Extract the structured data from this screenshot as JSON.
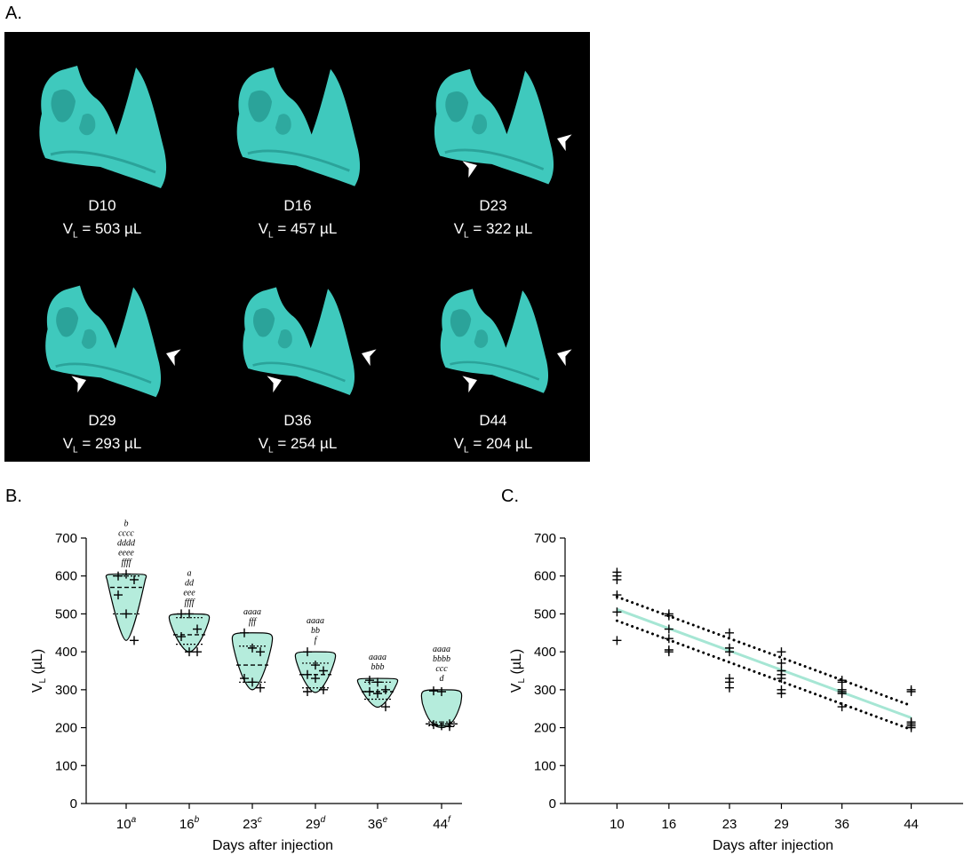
{
  "panel_a": {
    "label": "A.",
    "volume_prefix": "V",
    "volume_sub": "L",
    "items": [
      {
        "day": "D10",
        "volume": "503 µL",
        "arrows": 0
      },
      {
        "day": "D16",
        "volume": "457 µL",
        "arrows": 0
      },
      {
        "day": "D23",
        "volume": "322 µL",
        "arrows": 2
      },
      {
        "day": "D29",
        "volume": "293 µL",
        "arrows": 2
      },
      {
        "day": "D36",
        "volume": "254 µL",
        "arrows": 2
      },
      {
        "day": "D44",
        "volume": "204 µL",
        "arrows": 2
      }
    ],
    "colors": {
      "background": "#000000",
      "tissue": "#3fc9bd",
      "tissue_dark": "#1e8a82",
      "arrow": "#ffffff"
    }
  },
  "chart_data": [
    {
      "panel": "B.",
      "type": "violin",
      "xlabel": "Days after injection",
      "ylabel_main": "V",
      "ylabel_sub": "L",
      "ylabel_unit": " (µL)",
      "ylim": [
        0,
        700
      ],
      "yticks": [
        0,
        100,
        200,
        300,
        400,
        500,
        600,
        700
      ],
      "fill_color": "#b5ecdc",
      "groups": [
        {
          "label": "10",
          "sup": "a",
          "annotation": [
            "b",
            "cccc",
            "dddd",
            "eeee",
            "ffff"
          ],
          "min": 430,
          "max": 605,
          "median": 570,
          "q1": 500,
          "q3": 600,
          "points": [
            600,
            605,
            590,
            550,
            500,
            430
          ]
        },
        {
          "label": "16",
          "sup": "b",
          "annotation": [
            "a",
            "dd",
            "eee",
            "ffff"
          ],
          "min": 400,
          "max": 500,
          "median": 445,
          "q1": 420,
          "q3": 490,
          "points": [
            500,
            500,
            460,
            440,
            400,
            400
          ]
        },
        {
          "label": "23",
          "sup": "c",
          "annotation": [
            "aaaa",
            "fff"
          ],
          "min": 300,
          "max": 450,
          "median": 365,
          "q1": 320,
          "q3": 415,
          "points": [
            450,
            410,
            400,
            330,
            320,
            305
          ]
        },
        {
          "label": "29",
          "sup": "d",
          "annotation": [
            "aaaa",
            "bb",
            "f"
          ],
          "min": 293,
          "max": 400,
          "median": 340,
          "q1": 305,
          "q3": 370,
          "points": [
            400,
            365,
            350,
            340,
            330,
            300,
            295
          ]
        },
        {
          "label": "36",
          "sup": "e",
          "annotation": [
            "aaaa",
            "bbb"
          ],
          "min": 254,
          "max": 330,
          "median": 295,
          "q1": 275,
          "q3": 320,
          "points": [
            325,
            320,
            300,
            295,
            290,
            255
          ]
        },
        {
          "label": "44",
          "sup": "f",
          "annotation": [
            "aaaa",
            "bbbb",
            "ccc",
            "d"
          ],
          "min": 200,
          "max": 300,
          "median": 210,
          "q1": 205,
          "q3": 215,
          "points": [
            297,
            295,
            210,
            208,
            205,
            203
          ]
        }
      ]
    },
    {
      "panel": "C.",
      "type": "scatter",
      "xlabel": "Days after injection",
      "ylabel_main": "V",
      "ylabel_sub": "L",
      "ylabel_unit": " (µL)",
      "ylim": [
        0,
        700
      ],
      "xlim": [
        4,
        50
      ],
      "yticks": [
        0,
        100,
        200,
        300,
        400,
        500,
        600,
        700
      ],
      "xticks": [
        10,
        16,
        23,
        29,
        36,
        44
      ],
      "line_color": "#a6e6d4",
      "fit": {
        "x": [
          10,
          44
        ],
        "y": [
          512,
          226
        ]
      },
      "ci_upper": {
        "x": [
          10,
          44
        ],
        "y": [
          545,
          258
        ]
      },
      "ci_lower": {
        "x": [
          10,
          44
        ],
        "y": [
          482,
          195
        ]
      },
      "points": [
        [
          10,
          610
        ],
        [
          10,
          600
        ],
        [
          10,
          590
        ],
        [
          10,
          550
        ],
        [
          10,
          505
        ],
        [
          10,
          430
        ],
        [
          16,
          500
        ],
        [
          16,
          495
        ],
        [
          16,
          460
        ],
        [
          16,
          435
        ],
        [
          16,
          405
        ],
        [
          16,
          400
        ],
        [
          23,
          450
        ],
        [
          23,
          410
        ],
        [
          23,
          400
        ],
        [
          23,
          330
        ],
        [
          23,
          320
        ],
        [
          23,
          305
        ],
        [
          29,
          400
        ],
        [
          29,
          370
        ],
        [
          29,
          350
        ],
        [
          29,
          340
        ],
        [
          29,
          330
        ],
        [
          29,
          300
        ],
        [
          29,
          290
        ],
        [
          36,
          325
        ],
        [
          36,
          320
        ],
        [
          36,
          300
        ],
        [
          36,
          295
        ],
        [
          36,
          290
        ],
        [
          36,
          255
        ],
        [
          44,
          300
        ],
        [
          44,
          295
        ],
        [
          44,
          215
        ],
        [
          44,
          210
        ],
        [
          44,
          205
        ],
        [
          44,
          200
        ]
      ]
    }
  ]
}
